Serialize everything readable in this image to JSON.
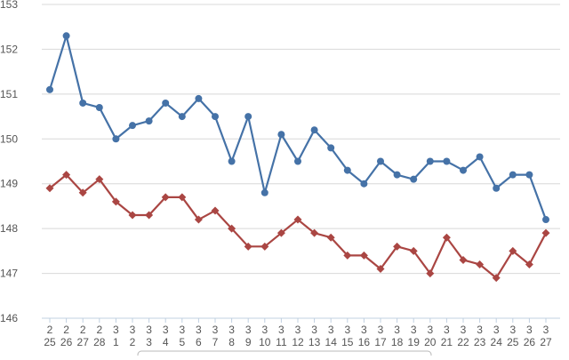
{
  "chart_data": {
    "type": "line",
    "x": [
      [
        "2",
        "25"
      ],
      [
        "2",
        "26"
      ],
      [
        "2",
        "27"
      ],
      [
        "2",
        "28"
      ],
      [
        "3",
        "1"
      ],
      [
        "3",
        "2"
      ],
      [
        "3",
        "3"
      ],
      [
        "3",
        "4"
      ],
      [
        "3",
        "5"
      ],
      [
        "3",
        "6"
      ],
      [
        "3",
        "7"
      ],
      [
        "3",
        "8"
      ],
      [
        "3",
        "9"
      ],
      [
        "3",
        "10"
      ],
      [
        "3",
        "11"
      ],
      [
        "3",
        "12"
      ],
      [
        "3",
        "13"
      ],
      [
        "3",
        "14"
      ],
      [
        "3",
        "15"
      ],
      [
        "3",
        "16"
      ],
      [
        "3",
        "17"
      ],
      [
        "3",
        "18"
      ],
      [
        "3",
        "19"
      ],
      [
        "3",
        "20"
      ],
      [
        "3",
        "21"
      ],
      [
        "3",
        "22"
      ],
      [
        "3",
        "23"
      ],
      [
        "3",
        "24"
      ],
      [
        "3",
        "25"
      ],
      [
        "3",
        "26"
      ],
      [
        "3",
        "27"
      ]
    ],
    "series": [
      {
        "color": "#4572A7",
        "marker": "circle",
        "values": [
          151.1,
          152.3,
          150.8,
          150.7,
          150.0,
          150.3,
          150.4,
          150.8,
          150.5,
          150.9,
          150.5,
          149.5,
          150.5,
          148.8,
          150.1,
          149.5,
          150.2,
          149.8,
          149.3,
          149.0,
          149.5,
          149.2,
          149.1,
          149.5,
          149.5,
          149.3,
          149.6,
          148.9,
          149.2,
          149.2,
          148.2
        ]
      },
      {
        "color": "#AA4643",
        "marker": "diamond",
        "values": [
          148.9,
          149.2,
          148.8,
          149.1,
          148.6,
          148.3,
          148.3,
          148.7,
          148.7,
          148.2,
          148.4,
          148.0,
          147.6,
          147.6,
          147.9,
          148.2,
          147.9,
          147.8,
          147.4,
          147.4,
          147.1,
          147.6,
          147.5,
          147.0,
          147.8,
          147.3,
          147.2,
          146.9,
          147.5,
          147.2,
          147.9
        ]
      }
    ],
    "ylim": [
      146,
      153
    ],
    "yticks": [
      "146",
      "147",
      "148",
      "149",
      "150",
      "151",
      "152",
      "153"
    ],
    "grid": true,
    "gridColor": "#d8d8d8",
    "axisColor": "#c0d0e0"
  }
}
